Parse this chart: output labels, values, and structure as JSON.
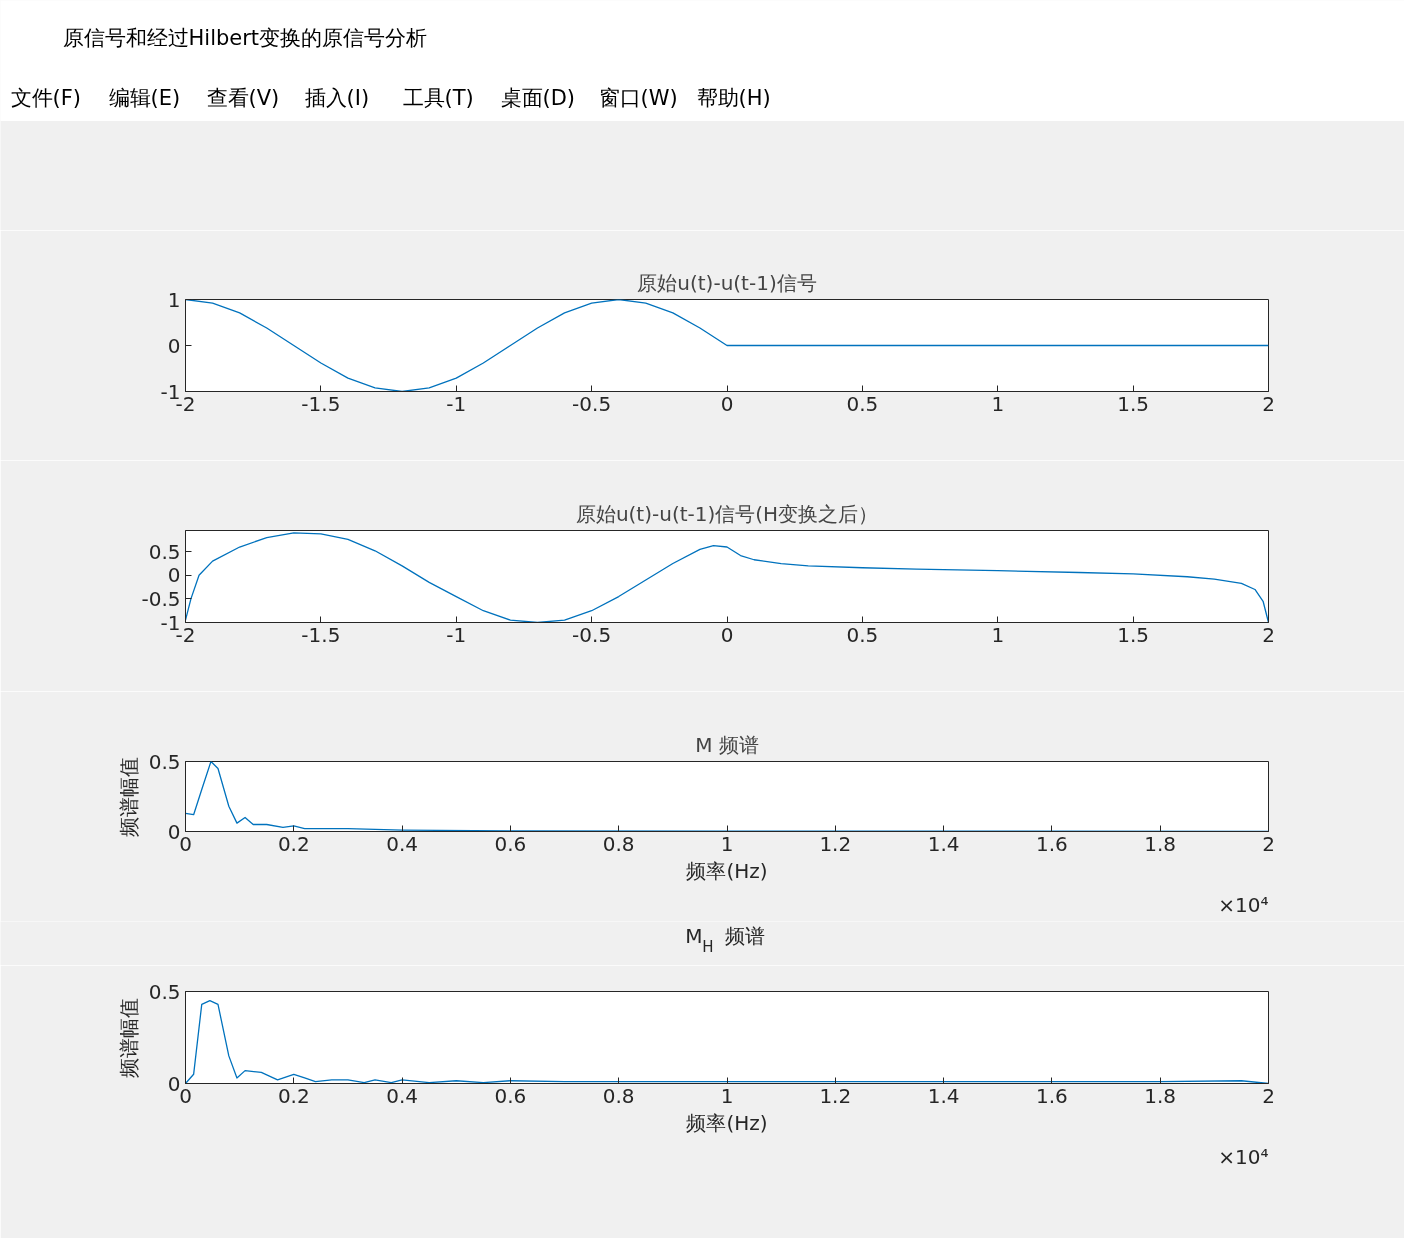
{
  "chart_data": [
    {
      "type": "other",
      "title": "原信号和经过Hilbert变换的原信号分析",
      "annotations": [
        "文件(F)",
        "编辑(E)",
        "查看(V)",
        "插入(I)",
        "工具(T)",
        "桌面(D)",
        "窗口(W)",
        "帮助(H)"
      ]
    },
    {
      "type": "line",
      "title": "原始u(t)-u(t-1)信号",
      "x": [
        -2,
        -1.9,
        -1.8,
        -1.7,
        -1.6,
        -1.5,
        -1.4,
        -1.3,
        -1.2,
        -1.1,
        -1.0,
        -0.9,
        -0.8,
        -0.7,
        -0.6,
        -0.5,
        -0.4,
        -0.3,
        -0.2,
        -0.1,
        0,
        2
      ],
      "series": [
        {
          "color": "#0072bd",
          "values": [
            1,
            0.92,
            0.71,
            0.38,
            0,
            -0.38,
            -0.71,
            -0.92,
            -1,
            -0.92,
            -0.71,
            -0.38,
            0,
            0.38,
            0.71,
            0.92,
            1,
            0.92,
            0.71,
            0.38,
            0,
            0
          ]
        }
      ],
      "xlim": [
        -2,
        2
      ],
      "ylim": [
        -1,
        1
      ],
      "xticks": [
        -2,
        -1.5,
        -1,
        -0.5,
        0,
        0.5,
        1,
        1.5,
        2
      ],
      "yticks": [
        -1,
        0,
        1
      ],
      "grid": false
    },
    {
      "type": "line",
      "title": "原始u(t)-u(t-1)信号(H变换之后）",
      "x": [
        -2,
        -1.98,
        -1.95,
        -1.9,
        -1.8,
        -1.7,
        -1.6,
        -1.5,
        -1.4,
        -1.3,
        -1.2,
        -1.1,
        -1.0,
        -0.9,
        -0.8,
        -0.7,
        -0.6,
        -0.5,
        -0.4,
        -0.3,
        -0.2,
        -0.1,
        -0.05,
        0,
        0.05,
        0.1,
        0.2,
        0.3,
        0.5,
        0.7,
        1.0,
        1.3,
        1.5,
        1.7,
        1.8,
        1.9,
        1.95,
        1.98,
        2
      ],
      "series": [
        {
          "color": "#0072bd",
          "values": [
            -0.95,
            -0.5,
            0,
            0.3,
            0.6,
            0.8,
            0.9,
            0.88,
            0.76,
            0.52,
            0.2,
            -0.15,
            -0.45,
            -0.75,
            -0.95,
            -1,
            -0.95,
            -0.75,
            -0.45,
            -0.1,
            0.25,
            0.55,
            0.63,
            0.6,
            0.42,
            0.33,
            0.25,
            0.2,
            0.16,
            0.13,
            0.1,
            0.06,
            0.03,
            -0.03,
            -0.08,
            -0.17,
            -0.3,
            -0.55,
            -1
          ]
        }
      ],
      "xlim": [
        -2,
        2
      ],
      "ylim": [
        -1,
        0.95
      ],
      "xticks": [
        -2,
        -1.5,
        -1,
        -0.5,
        0,
        0.5,
        1,
        1.5,
        2
      ],
      "yticks": [
        -1,
        -0.5,
        0,
        0.5
      ],
      "grid": false
    },
    {
      "type": "line",
      "title": "M 频谱",
      "xlabel": "频率(Hz)",
      "ylabel": "频谱幅值",
      "annotations": [
        "×10⁴"
      ],
      "x": [
        0,
        0.015,
        0.03,
        0.047,
        0.06,
        0.08,
        0.095,
        0.11,
        0.125,
        0.15,
        0.18,
        0.2,
        0.22,
        0.3,
        0.4,
        0.6,
        1.0,
        1.5,
        2.0
      ],
      "series": [
        {
          "color": "#0072bd",
          "values": [
            0.13,
            0.12,
            0.3,
            0.5,
            0.45,
            0.18,
            0.06,
            0.1,
            0.05,
            0.05,
            0.03,
            0.04,
            0.02,
            0.02,
            0.01,
            0.005,
            0.003,
            0.002,
            0
          ]
        }
      ],
      "xlim": [
        0,
        2
      ],
      "ylim": [
        0,
        0.5
      ],
      "xticks": [
        0,
        0.2,
        0.4,
        0.6,
        0.8,
        1,
        1.2,
        1.4,
        1.6,
        1.8,
        2
      ],
      "yticks": [
        0,
        0.5
      ],
      "grid": false
    },
    {
      "type": "line",
      "title": "M$_{H}$ 频谱",
      "xlabel": "频率(Hz)",
      "ylabel": "频谱幅值",
      "annotations": [
        "×10⁴"
      ],
      "x": [
        0,
        0.015,
        0.03,
        0.045,
        0.06,
        0.08,
        0.095,
        0.11,
        0.14,
        0.17,
        0.2,
        0.22,
        0.24,
        0.27,
        0.3,
        0.33,
        0.35,
        0.38,
        0.4,
        0.45,
        0.5,
        0.55,
        0.6,
        0.7,
        0.8,
        0.9,
        1.0,
        1.2,
        1.4,
        1.6,
        1.8,
        1.95,
        2.0
      ],
      "series": [
        {
          "color": "#0072bd",
          "values": [
            0,
            0.05,
            0.43,
            0.45,
            0.43,
            0.15,
            0.03,
            0.07,
            0.06,
            0.02,
            0.05,
            0.03,
            0.01,
            0.02,
            0.02,
            0.005,
            0.02,
            0.005,
            0.02,
            0.005,
            0.015,
            0.005,
            0.015,
            0.01,
            0.01,
            0.01,
            0.01,
            0.01,
            0.01,
            0.01,
            0.01,
            0.015,
            0
          ]
        }
      ],
      "xlim": [
        0,
        2
      ],
      "ylim": [
        0,
        0.5
      ],
      "xticks": [
        0,
        0.2,
        0.4,
        0.6,
        0.8,
        1,
        1.2,
        1.4,
        1.6,
        1.8,
        2
      ],
      "yticks": [
        0,
        0.5
      ],
      "grid": false
    }
  ]
}
